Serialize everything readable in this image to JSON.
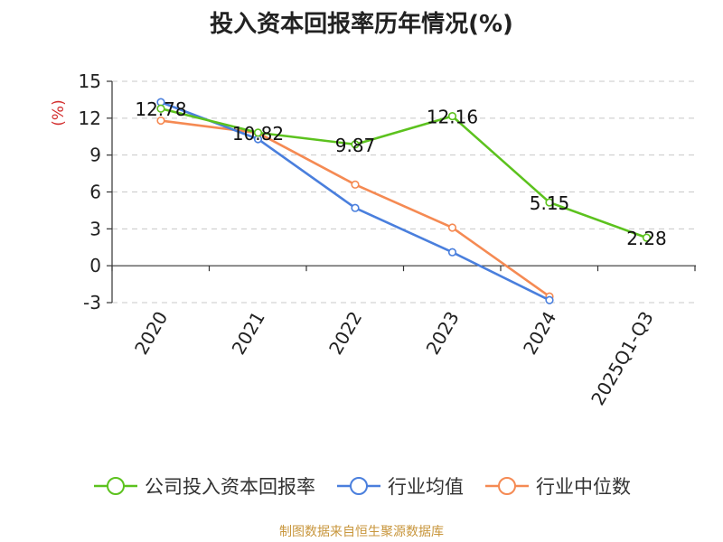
{
  "title": "投入资本回报率历年情况(%)",
  "source": "制图数据来自恒生聚源数据库",
  "chart_data": {
    "type": "line",
    "ylabel": "(%)",
    "ylim": [
      -3,
      15
    ],
    "yticks": [
      "15",
      "12",
      "9",
      "6",
      "3",
      "0",
      "-3"
    ],
    "ytick_values": [
      15,
      12,
      9,
      6,
      3,
      0,
      -3
    ],
    "categories": [
      "2020",
      "2021",
      "2022",
      "2023",
      "2024",
      "2025Q1-Q3"
    ],
    "grid": true,
    "legend_position": "bottom",
    "series": [
      {
        "name": "公司投入资本回报率",
        "color": "#5cc21e",
        "values": [
          12.78,
          10.82,
          9.87,
          12.16,
          5.15,
          2.28
        ],
        "labels": [
          "12.78",
          "10.82",
          "9.87",
          "12.16",
          "5.15",
          "2.28"
        ]
      },
      {
        "name": "行业均值",
        "color": "#4a7fdd",
        "values": [
          13.3,
          10.3,
          4.7,
          1.1,
          -2.8,
          null
        ]
      },
      {
        "name": "行业中位数",
        "color": "#f58a53",
        "values": [
          11.8,
          10.8,
          6.6,
          3.1,
          -2.5,
          null
        ]
      }
    ]
  }
}
